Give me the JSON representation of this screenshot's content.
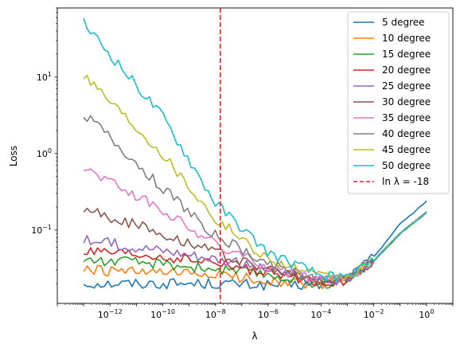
{
  "chart_data": {
    "type": "line",
    "title": "",
    "xlabel": "λ",
    "ylabel": "Loss",
    "x_scale": "log",
    "y_scale": "log",
    "xlim": [
      1e-14,
      10
    ],
    "ylim": [
      0.011,
      80
    ],
    "x_ticks": [
      {
        "value": 1e-12,
        "base": "10",
        "exp": "−12"
      },
      {
        "value": 1e-10,
        "base": "10",
        "exp": "−10"
      },
      {
        "value": 1e-08,
        "base": "10",
        "exp": "−8"
      },
      {
        "value": 1e-06,
        "base": "10",
        "exp": "−6"
      },
      {
        "value": 0.0001,
        "base": "10",
        "exp": "−4"
      },
      {
        "value": 0.01,
        "base": "10",
        "exp": "−2"
      },
      {
        "value": 1,
        "base": "10",
        "exp": "0"
      }
    ],
    "y_ticks": [
      {
        "value": 0.1,
        "base": "10",
        "exp": "−1"
      },
      {
        "value": 1,
        "base": "10",
        "exp": "0"
      },
      {
        "value": 10,
        "base": "10",
        "exp": "1"
      }
    ],
    "grid": false,
    "legend_position": "top-right",
    "x_range_log10": [
      -13,
      0
    ],
    "points_per_series": 100,
    "series": [
      {
        "name": "5 degree",
        "color": "#1f77b4",
        "anchors": [
          [
            -13,
            0.02
          ],
          [
            -10,
            0.02
          ],
          [
            -8,
            0.02
          ],
          [
            -6,
            0.019
          ],
          [
            -4,
            0.019
          ],
          [
            -3,
            0.023
          ],
          [
            -2,
            0.045
          ],
          [
            -1,
            0.12
          ],
          [
            0,
            0.24
          ]
        ]
      },
      {
        "name": "10 degree",
        "color": "#ff7f0e",
        "anchors": [
          [
            -13,
            0.03
          ],
          [
            -10,
            0.027
          ],
          [
            -8,
            0.026
          ],
          [
            -6,
            0.022
          ],
          [
            -4,
            0.019
          ],
          [
            -3,
            0.022
          ],
          [
            -2,
            0.04
          ],
          [
            -1,
            0.09
          ],
          [
            0,
            0.17
          ]
        ]
      },
      {
        "name": "15 degree",
        "color": "#2ca02c",
        "anchors": [
          [
            -13,
            0.041
          ],
          [
            -10,
            0.036
          ],
          [
            -8,
            0.031
          ],
          [
            -6,
            0.026
          ],
          [
            -4,
            0.02
          ],
          [
            -3,
            0.022
          ],
          [
            -2,
            0.04
          ],
          [
            -1,
            0.09
          ],
          [
            0,
            0.17
          ]
        ]
      },
      {
        "name": "20 degree",
        "color": "#d62728",
        "anchors": [
          [
            -13,
            0.052
          ],
          [
            -10,
            0.044
          ],
          [
            -8,
            0.037
          ],
          [
            -6,
            0.027
          ],
          [
            -4,
            0.021
          ],
          [
            -3,
            0.022
          ],
          [
            -2,
            0.04
          ],
          [
            -1,
            0.09
          ],
          [
            0,
            0.17
          ]
        ]
      },
      {
        "name": "25 degree",
        "color": "#9467bd",
        "anchors": [
          [
            -13,
            0.074
          ],
          [
            -10,
            0.055
          ],
          [
            -8,
            0.043
          ],
          [
            -6,
            0.03
          ],
          [
            -4,
            0.022
          ],
          [
            -3,
            0.022
          ],
          [
            -2,
            0.04
          ],
          [
            -1,
            0.09
          ],
          [
            0,
            0.17
          ]
        ]
      },
      {
        "name": "30 degree",
        "color": "#8c564b",
        "anchors": [
          [
            -13,
            0.19
          ],
          [
            -10,
            0.09
          ],
          [
            -8,
            0.052
          ],
          [
            -6,
            0.03
          ],
          [
            -4,
            0.022
          ],
          [
            -3,
            0.022
          ],
          [
            -2,
            0.04
          ],
          [
            -1,
            0.09
          ],
          [
            0,
            0.17
          ]
        ]
      },
      {
        "name": "35 degree",
        "color": "#e377c2",
        "anchors": [
          [
            -13,
            0.68
          ],
          [
            -10,
            0.18
          ],
          [
            -8,
            0.065
          ],
          [
            -6,
            0.033
          ],
          [
            -4,
            0.022
          ],
          [
            -3,
            0.023
          ],
          [
            -2,
            0.04
          ],
          [
            -1,
            0.09
          ],
          [
            0,
            0.17
          ]
        ]
      },
      {
        "name": "40 degree",
        "color": "#7f7f7f",
        "anchors": [
          [
            -13,
            3.4
          ],
          [
            -10,
            0.35
          ],
          [
            -8,
            0.085
          ],
          [
            -6,
            0.036
          ],
          [
            -4,
            0.023
          ],
          [
            -3,
            0.023
          ],
          [
            -2,
            0.04
          ],
          [
            -1,
            0.09
          ],
          [
            0,
            0.17
          ]
        ]
      },
      {
        "name": "45 degree",
        "color": "#bcbd22",
        "anchors": [
          [
            -13,
            11.0
          ],
          [
            -10,
            1.0
          ],
          [
            -8,
            0.14
          ],
          [
            -6,
            0.042
          ],
          [
            -4,
            0.024
          ],
          [
            -3,
            0.024
          ],
          [
            -2,
            0.04
          ],
          [
            -1,
            0.09
          ],
          [
            0,
            0.17
          ]
        ]
      },
      {
        "name": "50 degree",
        "color": "#17becf",
        "anchors": [
          [
            -13,
            50.0
          ],
          [
            -10,
            3.0
          ],
          [
            -8,
            0.22
          ],
          [
            -6,
            0.05
          ],
          [
            -4,
            0.025
          ],
          [
            -3,
            0.024
          ],
          [
            -2,
            0.04
          ],
          [
            -1,
            0.09
          ],
          [
            0,
            0.17
          ]
        ]
      }
    ],
    "reference_line": {
      "label": "ln λ = -18",
      "x": 1.523e-08,
      "color": "#d62728",
      "style": "dashed"
    }
  }
}
